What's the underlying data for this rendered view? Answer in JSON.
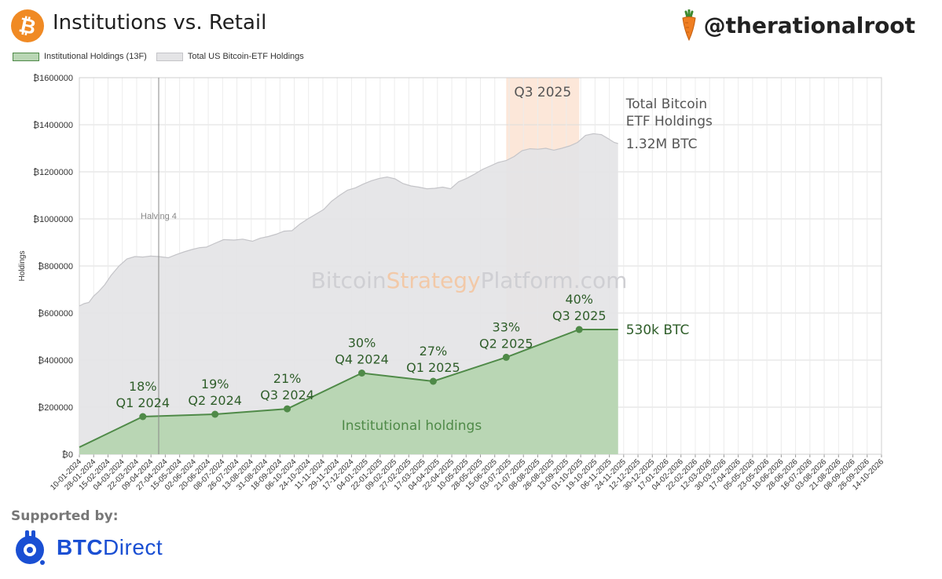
{
  "header": {
    "title": "Institutions vs. Retail",
    "brand": "@therationalroot"
  },
  "legend": {
    "institutional": "Institutional Holdings (13F)",
    "total": "Total US Bitcoin-ETF Holdings"
  },
  "footer": {
    "supported_by": "Supported by:",
    "sponsor_bold": "BTC",
    "sponsor_rest": "Direct"
  },
  "colors": {
    "institutional_fill": "#b9d6b4",
    "institutional_line": "#4f8a48",
    "total_fill": "#e4e4e6",
    "total_line": "#c4c4c8",
    "highlight": "#fbe3d2",
    "annotation_green": "#2f5e2a",
    "annotation_gray": "#555555",
    "btc_orange": "#f08a24",
    "sponsor_blue": "#1a4fd3"
  },
  "chart_data": {
    "type": "area",
    "ylabel": "Holdings",
    "y_tick_labels": [
      "₿0",
      "₿200000",
      "₿400000",
      "₿600000",
      "₿800000",
      "₿1000000",
      "₿1200000",
      "₿1400000",
      "₿1600000"
    ],
    "y_tick_values": [
      0,
      200000,
      400000,
      600000,
      800000,
      1000000,
      1200000,
      1400000,
      1600000
    ],
    "ylim": [
      0,
      1600000
    ],
    "x_tick_labels": [
      "10-01-2024",
      "28-01-2024",
      "15-02-2024",
      "04-03-2024",
      "22-03-2024",
      "09-04-2024",
      "27-04-2024",
      "15-05-2024",
      "02-06-2024",
      "20-06-2024",
      "08-07-2024",
      "26-07-2024",
      "13-08-2024",
      "31-08-2024",
      "18-09-2024",
      "06-10-2024",
      "24-10-2024",
      "11-11-2024",
      "29-11-2024",
      "17-12-2024",
      "04-01-2025",
      "22-01-2025",
      "09-02-2025",
      "27-02-2025",
      "17-03-2025",
      "04-04-2025",
      "22-04-2025",
      "10-05-2025",
      "28-05-2025",
      "15-06-2025",
      "03-07-2025",
      "21-07-2025",
      "08-08-2025",
      "26-08-2025",
      "13-09-2025",
      "01-10-2025",
      "19-10-2025",
      "06-11-2025",
      "24-11-2025",
      "12-12-2025",
      "30-12-2025",
      "17-01-2026",
      "04-02-2026",
      "22-02-2026",
      "12-03-2026",
      "30-03-2026",
      "17-04-2026",
      "05-05-2026",
      "23-05-2026",
      "10-06-2026",
      "28-06-2026",
      "16-07-2026",
      "03-08-2026",
      "21-08-2026",
      "08-09-2026",
      "26-09-2026",
      "14-10-2026"
    ],
    "x_range_days": [
      0,
      1011
    ],
    "grid": true,
    "watermark": {
      "part1": "Bitcoin",
      "part2": "Strategy",
      "part3": "Platform.com"
    },
    "halving": {
      "label": "Halving 4",
      "day": 100
    },
    "highlight": {
      "label": "Q3 2025",
      "day_start": 538,
      "day_end": 630
    },
    "series": [
      {
        "name": "Total US Bitcoin-ETF Holdings",
        "points": [
          [
            0,
            630000
          ],
          [
            6,
            640000
          ],
          [
            12,
            645000
          ],
          [
            18,
            672000
          ],
          [
            24,
            690000
          ],
          [
            32,
            720000
          ],
          [
            40,
            760000
          ],
          [
            50,
            800000
          ],
          [
            60,
            830000
          ],
          [
            70,
            840000
          ],
          [
            80,
            838000
          ],
          [
            90,
            842000
          ],
          [
            100,
            840000
          ],
          [
            112,
            835000
          ],
          [
            122,
            848000
          ],
          [
            132,
            860000
          ],
          [
            142,
            870000
          ],
          [
            152,
            878000
          ],
          [
            160,
            880000
          ],
          [
            170,
            895000
          ],
          [
            182,
            912000
          ],
          [
            195,
            910000
          ],
          [
            206,
            914000
          ],
          [
            218,
            905000
          ],
          [
            228,
            918000
          ],
          [
            238,
            925000
          ],
          [
            248,
            935000
          ],
          [
            258,
            948000
          ],
          [
            268,
            950000
          ],
          [
            278,
            978000
          ],
          [
            288,
            1000000
          ],
          [
            298,
            1020000
          ],
          [
            308,
            1040000
          ],
          [
            318,
            1075000
          ],
          [
            328,
            1100000
          ],
          [
            338,
            1122000
          ],
          [
            348,
            1132000
          ],
          [
            358,
            1148000
          ],
          [
            368,
            1162000
          ],
          [
            378,
            1172000
          ],
          [
            388,
            1178000
          ],
          [
            398,
            1170000
          ],
          [
            408,
            1150000
          ],
          [
            418,
            1140000
          ],
          [
            428,
            1135000
          ],
          [
            438,
            1128000
          ],
          [
            448,
            1130000
          ],
          [
            458,
            1135000
          ],
          [
            468,
            1128000
          ],
          [
            478,
            1158000
          ],
          [
            488,
            1172000
          ],
          [
            498,
            1190000
          ],
          [
            508,
            1210000
          ],
          [
            518,
            1225000
          ],
          [
            528,
            1240000
          ],
          [
            538,
            1248000
          ],
          [
            548,
            1265000
          ],
          [
            558,
            1290000
          ],
          [
            568,
            1298000
          ],
          [
            578,
            1296000
          ],
          [
            588,
            1300000
          ],
          [
            598,
            1292000
          ],
          [
            608,
            1300000
          ],
          [
            618,
            1310000
          ],
          [
            628,
            1325000
          ],
          [
            638,
            1355000
          ],
          [
            648,
            1362000
          ],
          [
            658,
            1358000
          ],
          [
            666,
            1342000
          ],
          [
            674,
            1325000
          ],
          [
            679,
            1320000
          ]
        ]
      },
      {
        "name": "Institutional Holdings (13F)",
        "points": [
          [
            0,
            30000
          ],
          [
            80,
            160000
          ],
          [
            171,
            170000
          ],
          [
            262,
            193000
          ],
          [
            356,
            345000
          ],
          [
            446,
            310000
          ],
          [
            538,
            412000
          ],
          [
            630,
            530000
          ],
          [
            679,
            530000
          ]
        ],
        "labels": [
          {
            "day": 80,
            "value": 160000,
            "pct": "18%",
            "quarter": "Q1 2024"
          },
          {
            "day": 171,
            "value": 170000,
            "pct": "19%",
            "quarter": "Q2 2024"
          },
          {
            "day": 262,
            "value": 193000,
            "pct": "21%",
            "quarter": "Q3 2024"
          },
          {
            "day": 356,
            "value": 345000,
            "pct": "30%",
            "quarter": "Q4 2024"
          },
          {
            "day": 446,
            "value": 310000,
            "pct": "27%",
            "quarter": "Q1 2025"
          },
          {
            "day": 538,
            "value": 412000,
            "pct": "33%",
            "quarter": "Q2 2025"
          },
          {
            "day": 630,
            "value": 530000,
            "pct": "40%",
            "quarter": "Q3 2025"
          }
        ]
      }
    ],
    "annotations": {
      "total_line1": "Total Bitcoin",
      "total_line2": "ETF Holdings",
      "total_value": "1.32M BTC",
      "institutional_value": "530k BTC",
      "institutional_label": "Institutional holdings"
    }
  }
}
